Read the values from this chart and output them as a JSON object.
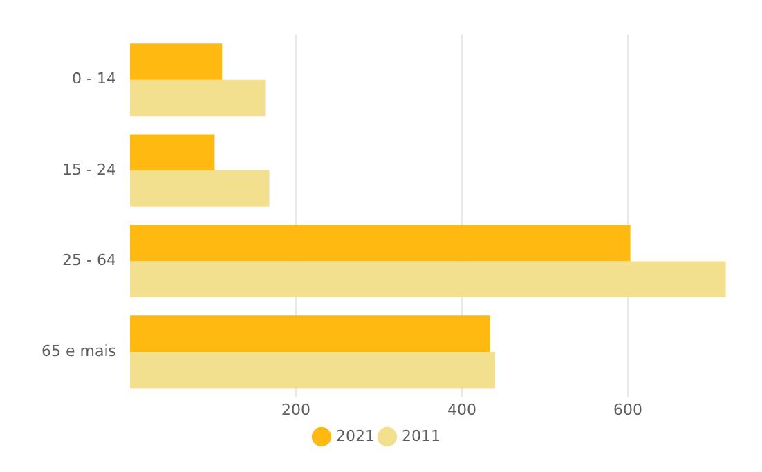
{
  "chart_data": {
    "type": "bar",
    "orientation": "horizontal",
    "categories": [
      "0 - 14",
      "15 - 24",
      "25 - 64",
      "65 e mais"
    ],
    "series": [
      {
        "name": "2021",
        "color": "#ffb911",
        "values": [
          111,
          102,
          603,
          434
        ]
      },
      {
        "name": "2011",
        "color": "#f2e08e",
        "values": [
          163,
          168,
          718,
          440
        ]
      }
    ],
    "xlim": [
      0,
      720
    ],
    "xticks": [
      200,
      400,
      600
    ],
    "grid": "x",
    "legend": "bottom"
  }
}
